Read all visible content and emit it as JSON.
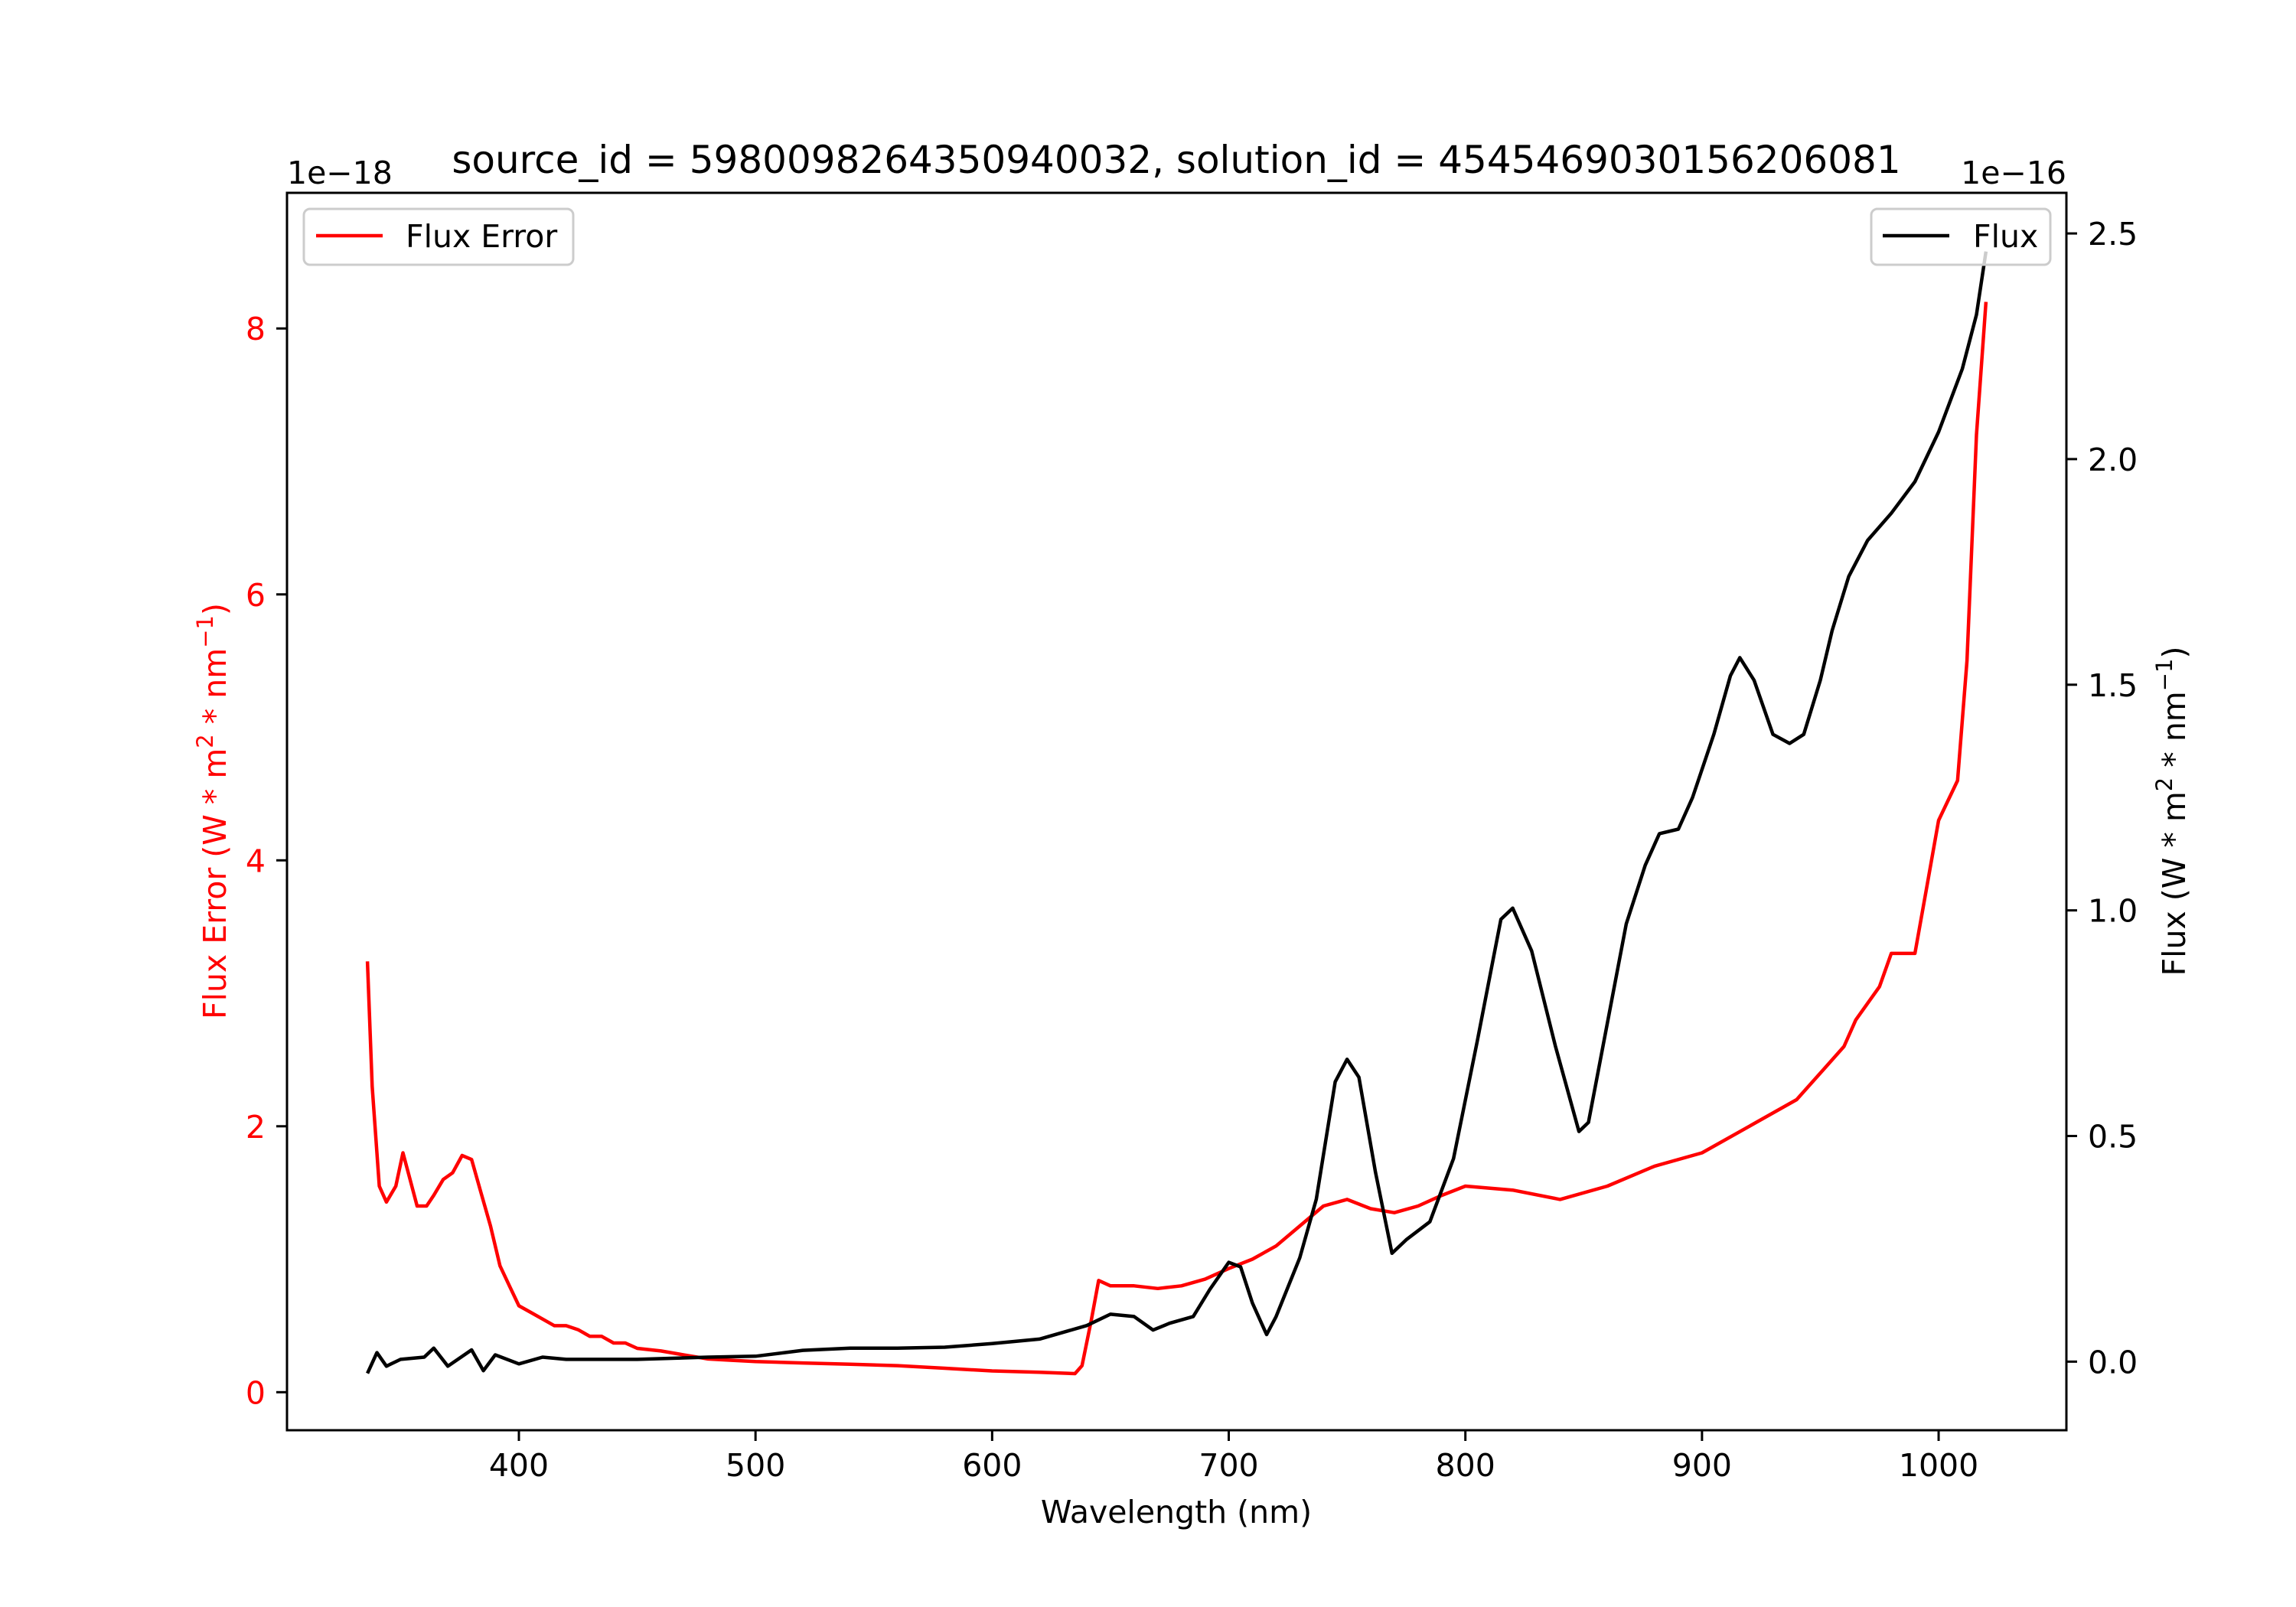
{
  "chart_data": {
    "type": "line",
    "title": "source_id = 5980098264350940032, solution_id = 4545469030156206081",
    "xlabel": "Wavelength (nm)",
    "xlim": [
      302,
      1054
    ],
    "xticks": [
      "400",
      "500",
      "600",
      "700",
      "800",
      "900",
      "1000"
    ],
    "left_axis": {
      "label_parts": [
        "Flux Error (W * m",
        "2",
        " * nm",
        "−1",
        ")"
      ],
      "offset_text": "1e−18",
      "ylim": [
        -0.286,
        9.02
      ],
      "ticks": [
        "0",
        "2",
        "4",
        "6",
        "8"
      ],
      "color": "#ff0000"
    },
    "right_axis": {
      "label_parts": [
        "Flux (W * m",
        "2",
        " * nm",
        "−1",
        ")"
      ],
      "offset_text": "1e−16",
      "ylim": [
        -0.152,
        2.59
      ],
      "ticks": [
        "0.0",
        "0.5",
        "1.0",
        "1.5",
        "2.0",
        "2.5"
      ],
      "color": "#000000"
    },
    "legend_left": {
      "label": "Flux Error",
      "placement": "upper-left"
    },
    "legend_right": {
      "label": "Flux",
      "placement": "upper-right"
    },
    "series": [
      {
        "name": "Flux Error",
        "axis": "left",
        "color": "#ff0000",
        "x": [
          336,
          338,
          341,
          344,
          348,
          351,
          354,
          357,
          361,
          364,
          368,
          372,
          376,
          380,
          384,
          388,
          392,
          396,
          400,
          405,
          410,
          415,
          420,
          425,
          430,
          435,
          440,
          445,
          450,
          460,
          470,
          480,
          490,
          500,
          520,
          540,
          560,
          580,
          600,
          620,
          635,
          638,
          642,
          645,
          650,
          660,
          670,
          680,
          690,
          700,
          710,
          720,
          730,
          740,
          750,
          760,
          770,
          780,
          790,
          800,
          820,
          840,
          860,
          880,
          900,
          920,
          940,
          950,
          960,
          965,
          975,
          980,
          990,
          995,
          1000,
          1008,
          1012,
          1016,
          1020
        ],
        "y": [
          3.24,
          2.3,
          1.55,
          1.43,
          1.55,
          1.8,
          1.6,
          1.4,
          1.4,
          1.48,
          1.6,
          1.65,
          1.78,
          1.75,
          1.5,
          1.25,
          0.95,
          0.8,
          0.65,
          0.6,
          0.55,
          0.5,
          0.5,
          0.47,
          0.42,
          0.42,
          0.37,
          0.37,
          0.33,
          0.31,
          0.28,
          0.25,
          0.24,
          0.23,
          0.22,
          0.21,
          0.2,
          0.18,
          0.16,
          0.15,
          0.14,
          0.2,
          0.55,
          0.84,
          0.8,
          0.8,
          0.78,
          0.8,
          0.85,
          0.93,
          1.0,
          1.1,
          1.25,
          1.4,
          1.45,
          1.38,
          1.35,
          1.4,
          1.48,
          1.55,
          1.52,
          1.45,
          1.55,
          1.7,
          1.8,
          2.0,
          2.2,
          2.4,
          2.6,
          2.8,
          3.05,
          3.3,
          3.3,
          3.8,
          4.3,
          4.6,
          5.5,
          7.2,
          8.2
        ]
      },
      {
        "name": "Flux",
        "axis": "right",
        "color": "#000000",
        "x": [
          336,
          340,
          344,
          350,
          360,
          364,
          370,
          380,
          385,
          390,
          400,
          410,
          420,
          430,
          440,
          450,
          480,
          500,
          520,
          540,
          560,
          580,
          600,
          620,
          640,
          650,
          660,
          668,
          675,
          685,
          692,
          700,
          705,
          710,
          716,
          720,
          730,
          737,
          745,
          750,
          755,
          762,
          769,
          775,
          785,
          795,
          805,
          815,
          820,
          828,
          838,
          848,
          852,
          860,
          868,
          876,
          882,
          890,
          896,
          905,
          912,
          916,
          922,
          930,
          937,
          943,
          950,
          955,
          962,
          970,
          980,
          990,
          1000,
          1010,
          1016,
          1020
        ],
        "y": [
          -0.026,
          0.02,
          -0.01,
          0.005,
          0.01,
          0.03,
          -0.01,
          0.026,
          -0.02,
          0.015,
          -0.005,
          0.01,
          0.005,
          0.005,
          0.005,
          0.005,
          0.01,
          0.012,
          0.025,
          0.03,
          0.03,
          0.032,
          0.04,
          0.05,
          0.08,
          0.105,
          0.1,
          0.07,
          0.085,
          0.1,
          0.16,
          0.22,
          0.21,
          0.13,
          0.06,
          0.1,
          0.23,
          0.36,
          0.62,
          0.67,
          0.63,
          0.42,
          0.24,
          0.27,
          0.31,
          0.45,
          0.71,
          0.98,
          1.005,
          0.91,
          0.7,
          0.51,
          0.53,
          0.75,
          0.97,
          1.1,
          1.17,
          1.18,
          1.25,
          1.39,
          1.52,
          1.56,
          1.51,
          1.39,
          1.37,
          1.39,
          1.51,
          1.62,
          1.74,
          1.82,
          1.88,
          1.95,
          2.06,
          2.2,
          2.32,
          2.46
        ]
      }
    ]
  }
}
